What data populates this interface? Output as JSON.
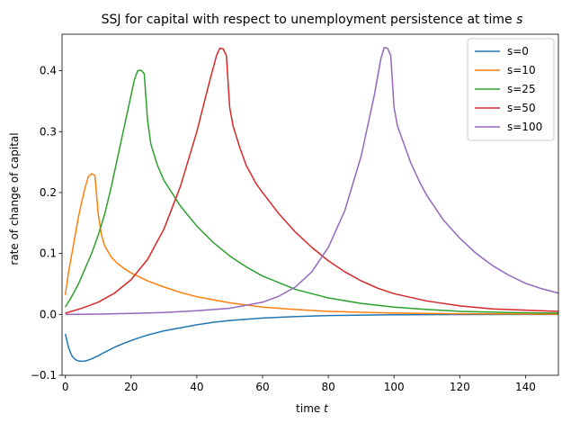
{
  "chart_data": {
    "type": "line",
    "title_prefix": "SSJ for capital with respect to unemployment persistence at time ",
    "title_var": "s",
    "xlabel_prefix": "time ",
    "xlabel_var": "t",
    "ylabel": "rate of change of capital",
    "xlim": [
      -1,
      150
    ],
    "ylim": [
      -0.1,
      0.46
    ],
    "xticks": [
      0,
      20,
      40,
      60,
      80,
      100,
      120,
      140
    ],
    "yticks": [
      -0.1,
      0.0,
      0.1,
      0.2,
      0.3,
      0.4
    ],
    "ytick_labels": [
      "−0.1",
      "0.0",
      "0.1",
      "0.2",
      "0.3",
      "0.4"
    ],
    "legend_position": "top-right",
    "series": [
      {
        "name": "s=0",
        "color": "#1f77b4",
        "points": [
          [
            0,
            -0.032
          ],
          [
            1,
            -0.055
          ],
          [
            2,
            -0.068
          ],
          [
            3,
            -0.074
          ],
          [
            4,
            -0.0765
          ],
          [
            5,
            -0.077
          ],
          [
            6,
            -0.0765
          ],
          [
            7,
            -0.075
          ],
          [
            8,
            -0.073
          ],
          [
            10,
            -0.068
          ],
          [
            12,
            -0.062
          ],
          [
            15,
            -0.054
          ],
          [
            18,
            -0.047
          ],
          [
            21,
            -0.041
          ],
          [
            25,
            -0.034
          ],
          [
            30,
            -0.027
          ],
          [
            35,
            -0.022
          ],
          [
            40,
            -0.017
          ],
          [
            45,
            -0.013
          ],
          [
            50,
            -0.01
          ],
          [
            60,
            -0.006
          ],
          [
            70,
            -0.0035
          ],
          [
            80,
            -0.002
          ],
          [
            90,
            -0.0012
          ],
          [
            100,
            -0.0007
          ],
          [
            120,
            -0.0002
          ],
          [
            150,
            0.0
          ]
        ]
      },
      {
        "name": "s=10",
        "color": "#ff7f0e",
        "points": [
          [
            0,
            0.032
          ],
          [
            1,
            0.07
          ],
          [
            2,
            0.1
          ],
          [
            3,
            0.13
          ],
          [
            4,
            0.16
          ],
          [
            5,
            0.185
          ],
          [
            6,
            0.208
          ],
          [
            7,
            0.226
          ],
          [
            8,
            0.231
          ],
          [
            9,
            0.228
          ],
          [
            10,
            0.165
          ],
          [
            11,
            0.13
          ],
          [
            12,
            0.112
          ],
          [
            14,
            0.094
          ],
          [
            16,
            0.083
          ],
          [
            18,
            0.075
          ],
          [
            20,
            0.068
          ],
          [
            25,
            0.055
          ],
          [
            30,
            0.045
          ],
          [
            35,
            0.036
          ],
          [
            40,
            0.029
          ],
          [
            45,
            0.024
          ],
          [
            50,
            0.019
          ],
          [
            60,
            0.012
          ],
          [
            70,
            0.008
          ],
          [
            80,
            0.005
          ],
          [
            90,
            0.0035
          ],
          [
            100,
            0.0022
          ],
          [
            120,
            0.001
          ],
          [
            150,
            0.0003
          ]
        ]
      },
      {
        "name": "s=25",
        "color": "#2ca02c",
        "points": [
          [
            0,
            0.012
          ],
          [
            2,
            0.03
          ],
          [
            4,
            0.05
          ],
          [
            6,
            0.075
          ],
          [
            8,
            0.1
          ],
          [
            10,
            0.13
          ],
          [
            12,
            0.165
          ],
          [
            14,
            0.21
          ],
          [
            16,
            0.26
          ],
          [
            18,
            0.31
          ],
          [
            20,
            0.36
          ],
          [
            21,
            0.385
          ],
          [
            22,
            0.4
          ],
          [
            23,
            0.401
          ],
          [
            24,
            0.395
          ],
          [
            25,
            0.32
          ],
          [
            26,
            0.28
          ],
          [
            28,
            0.245
          ],
          [
            30,
            0.22
          ],
          [
            35,
            0.178
          ],
          [
            40,
            0.145
          ],
          [
            45,
            0.118
          ],
          [
            50,
            0.096
          ],
          [
            55,
            0.078
          ],
          [
            60,
            0.063
          ],
          [
            70,
            0.041
          ],
          [
            80,
            0.027
          ],
          [
            90,
            0.018
          ],
          [
            100,
            0.012
          ],
          [
            110,
            0.008
          ],
          [
            120,
            0.005
          ],
          [
            135,
            0.003
          ],
          [
            150,
            0.002
          ]
        ]
      },
      {
        "name": "s=50",
        "color": "#d62728",
        "points": [
          [
            0,
            0.002
          ],
          [
            5,
            0.01
          ],
          [
            10,
            0.02
          ],
          [
            15,
            0.035
          ],
          [
            20,
            0.057
          ],
          [
            25,
            0.09
          ],
          [
            30,
            0.14
          ],
          [
            35,
            0.21
          ],
          [
            40,
            0.3
          ],
          [
            44,
            0.385
          ],
          [
            46,
            0.425
          ],
          [
            47,
            0.437
          ],
          [
            48,
            0.436
          ],
          [
            49,
            0.425
          ],
          [
            50,
            0.34
          ],
          [
            51,
            0.31
          ],
          [
            53,
            0.275
          ],
          [
            55,
            0.245
          ],
          [
            58,
            0.215
          ],
          [
            60,
            0.2
          ],
          [
            65,
            0.165
          ],
          [
            70,
            0.135
          ],
          [
            75,
            0.11
          ],
          [
            80,
            0.088
          ],
          [
            85,
            0.07
          ],
          [
            90,
            0.055
          ],
          [
            95,
            0.043
          ],
          [
            100,
            0.034
          ],
          [
            110,
            0.022
          ],
          [
            120,
            0.014
          ],
          [
            130,
            0.009
          ],
          [
            140,
            0.007
          ],
          [
            150,
            0.005
          ]
        ]
      },
      {
        "name": "s=100",
        "color": "#9467bd",
        "points": [
          [
            0,
            0.0
          ],
          [
            10,
            0.0005
          ],
          [
            20,
            0.0015
          ],
          [
            30,
            0.003
          ],
          [
            40,
            0.006
          ],
          [
            50,
            0.01
          ],
          [
            60,
            0.02
          ],
          [
            65,
            0.03
          ],
          [
            70,
            0.045
          ],
          [
            75,
            0.07
          ],
          [
            80,
            0.11
          ],
          [
            85,
            0.17
          ],
          [
            90,
            0.26
          ],
          [
            94,
            0.36
          ],
          [
            96,
            0.42
          ],
          [
            97,
            0.438
          ],
          [
            98,
            0.437
          ],
          [
            99,
            0.425
          ],
          [
            100,
            0.34
          ],
          [
            101,
            0.31
          ],
          [
            103,
            0.28
          ],
          [
            105,
            0.25
          ],
          [
            108,
            0.215
          ],
          [
            110,
            0.195
          ],
          [
            115,
            0.155
          ],
          [
            120,
            0.125
          ],
          [
            125,
            0.1
          ],
          [
            130,
            0.08
          ],
          [
            135,
            0.064
          ],
          [
            140,
            0.051
          ],
          [
            145,
            0.042
          ],
          [
            150,
            0.035
          ]
        ]
      }
    ]
  }
}
